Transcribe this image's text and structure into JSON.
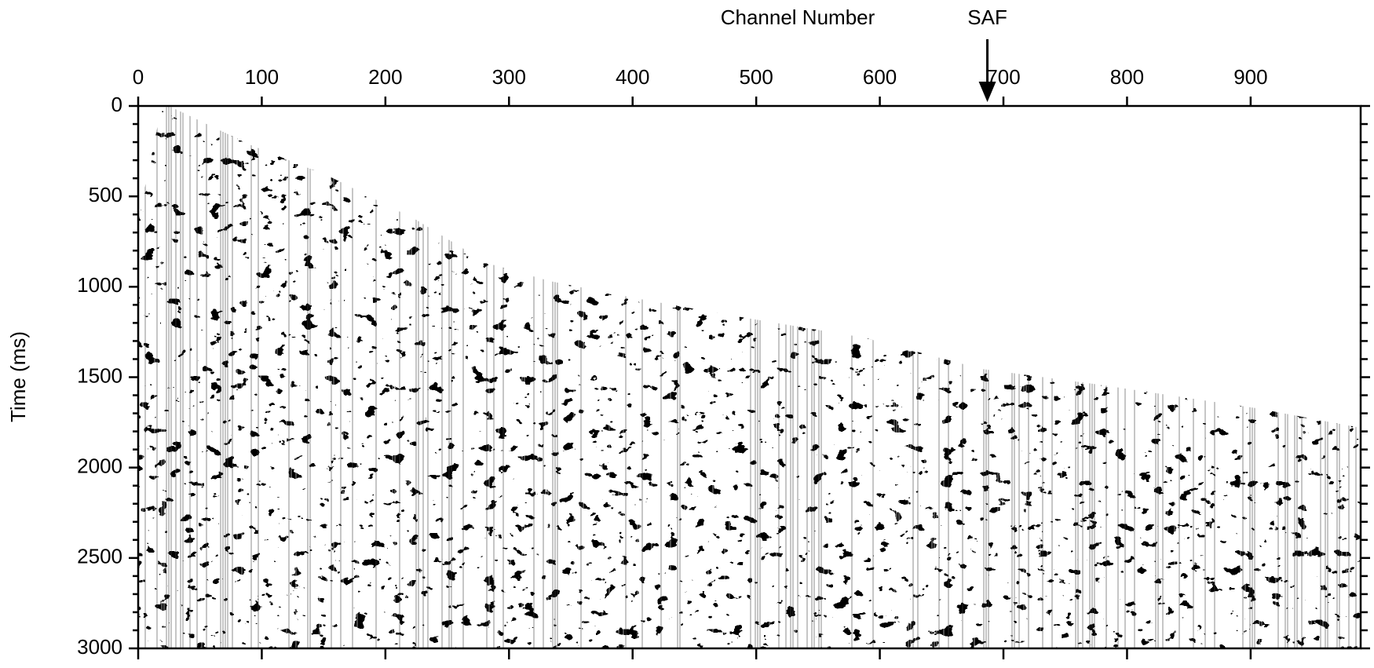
{
  "chart_data": {
    "type": "seismic-gather",
    "title": "Channel Number",
    "ylabel": "Time (ms)",
    "xlim": [
      0,
      989
    ],
    "xticks": [
      0,
      100,
      200,
      300,
      400,
      500,
      600,
      700,
      800,
      900
    ],
    "ylim": [
      0,
      3000
    ],
    "yticks": [
      0,
      500,
      1000,
      1500,
      2000,
      2500,
      3000
    ],
    "yticks_minor": [
      100,
      200,
      300,
      400,
      600,
      700,
      800,
      900,
      1100,
      1200,
      1300,
      1400,
      1600,
      1700,
      1800,
      1900,
      2100,
      2200,
      2300,
      2400,
      2600,
      2700,
      2800,
      2900
    ],
    "y_inverted": true,
    "annotations": [
      {
        "text": "SAF",
        "x": 687
      }
    ]
  }
}
